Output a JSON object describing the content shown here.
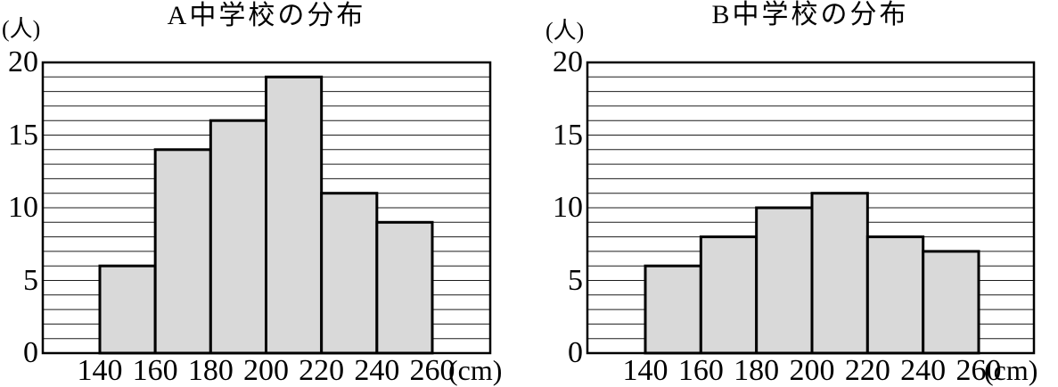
{
  "figure": {
    "background_color": "#ffffff",
    "description": "Two side-by-side histograms comparing distributions of school A and school B"
  },
  "chart_data": [
    {
      "type": "bar",
      "chart_kind": "histogram",
      "title": "A中学校の分布",
      "y_unit": "(人)",
      "x_unit": "(cm)",
      "x_tick_labels": [
        "140",
        "160",
        "180",
        "200",
        "220",
        "240",
        "260"
      ],
      "y_ticks": [
        0,
        5,
        10,
        15,
        20
      ],
      "ylim": [
        0,
        20
      ],
      "grid": "horizontal lines at every 1 unit, framed plot box",
      "legend": "none",
      "bin_edges_cm": [
        140,
        160,
        180,
        200,
        220,
        240,
        260
      ],
      "categories": [
        "140-160",
        "160-180",
        "180-200",
        "200-220",
        "220-240",
        "240-260"
      ],
      "values": [
        6,
        14,
        16,
        19,
        11,
        9
      ],
      "bar_fill": "#d9d9d9",
      "bar_stroke": "#000000",
      "grid_color": "#1c1c1c"
    },
    {
      "type": "bar",
      "chart_kind": "histogram",
      "title": "B中学校の分布",
      "y_unit": "(人)",
      "x_unit": "(cm)",
      "x_tick_labels": [
        "140",
        "160",
        "180",
        "200",
        "220",
        "240",
        "260"
      ],
      "y_ticks": [
        0,
        5,
        10,
        15,
        20
      ],
      "ylim": [
        0,
        20
      ],
      "grid": "horizontal lines at every 1 unit, framed plot box",
      "legend": "none",
      "bin_edges_cm": [
        140,
        160,
        180,
        200,
        220,
        240,
        260
      ],
      "categories": [
        "140-160",
        "160-180",
        "180-200",
        "200-220",
        "220-240",
        "240-260"
      ],
      "values": [
        6,
        8,
        10,
        11,
        8,
        7
      ],
      "bar_fill": "#d9d9d9",
      "bar_stroke": "#000000",
      "grid_color": "#1c1c1c"
    }
  ]
}
